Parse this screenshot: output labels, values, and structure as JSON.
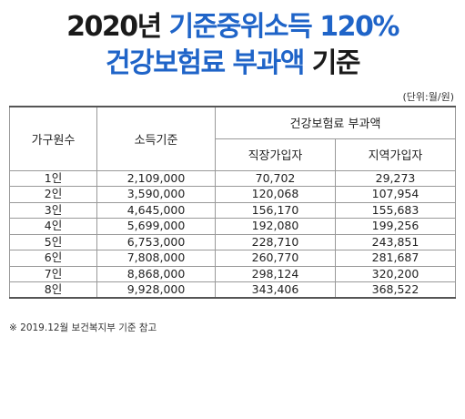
{
  "title": {
    "line1_dark": "2020년 ",
    "line1_blue": "기준중위소득 120%",
    "line2_blue": "건강보험료 부과액",
    "line2_dark": " 기준"
  },
  "unit": "(단위:월/원)",
  "table": {
    "headers": {
      "household": "가구원수",
      "income": "소득기준",
      "premium_group": "건강보험료 부과액",
      "employee": "직장가입자",
      "regional": "지역가입자"
    },
    "rows": [
      [
        "1인",
        "2,109,000",
        "70,702",
        "29,273"
      ],
      [
        "2인",
        "3,590,000",
        "120,068",
        "107,954"
      ],
      [
        "3인",
        "4,645,000",
        "156,170",
        "155,683"
      ],
      [
        "4인",
        "5,699,000",
        "192,080",
        "199,256"
      ],
      [
        "5인",
        "6,753,000",
        "228,710",
        "243,851"
      ],
      [
        "6인",
        "7,808,000",
        "260,770",
        "281,687"
      ],
      [
        "7인",
        "8,868,000",
        "298,124",
        "320,200"
      ],
      [
        "8인",
        "9,928,000",
        "343,406",
        "368,522"
      ]
    ]
  },
  "note": "※ 2019.12월 보건복지부 기준 참고"
}
